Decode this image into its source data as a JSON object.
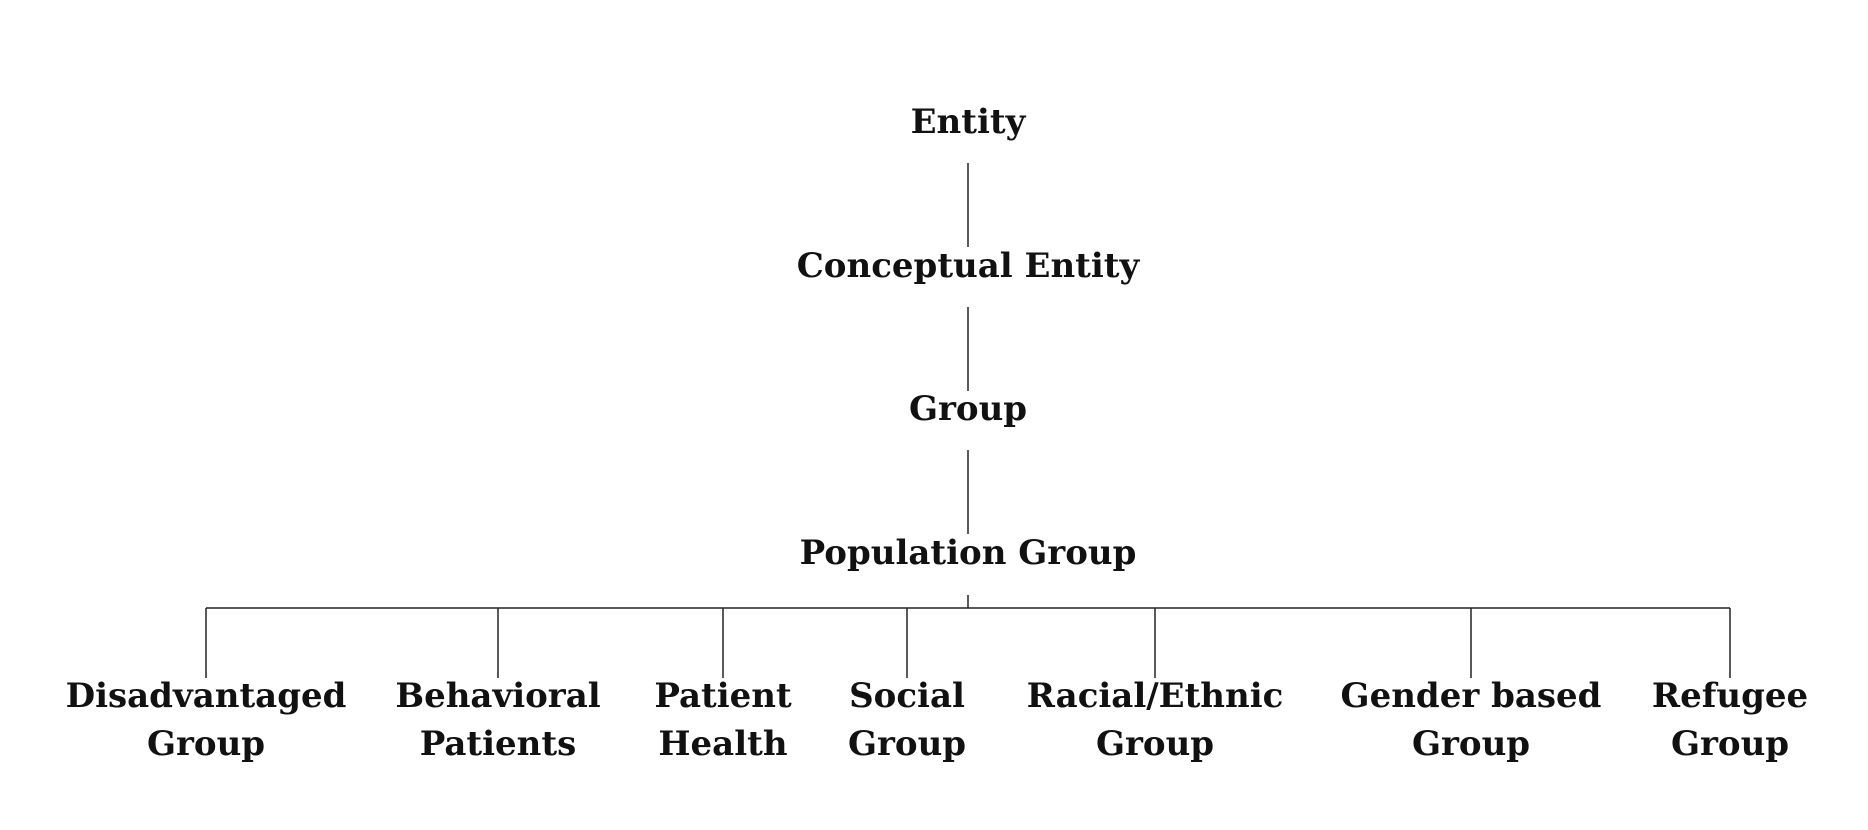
{
  "diagram": {
    "type": "tree",
    "root": {
      "label": [
        "Entity"
      ],
      "children": [
        {
          "label": [
            "Conceptual Entity"
          ],
          "children": [
            {
              "label": [
                "Group"
              ],
              "children": [
                {
                  "label": [
                    "Population Group"
                  ],
                  "children": [
                    {
                      "label": [
                        "Disadvantaged",
                        "Group"
                      ]
                    },
                    {
                      "label": [
                        "Behavioral",
                        "Patients"
                      ]
                    },
                    {
                      "label": [
                        "Patient",
                        "Health"
                      ]
                    },
                    {
                      "label": [
                        "Social",
                        "Group"
                      ]
                    },
                    {
                      "label": [
                        "Racial/Ethnic",
                        "Group"
                      ]
                    },
                    {
                      "label": [
                        "Gender based",
                        "Group"
                      ]
                    },
                    {
                      "label": [
                        "Refugee",
                        "Group"
                      ]
                    }
                  ]
                }
              ]
            }
          ]
        }
      ]
    }
  }
}
